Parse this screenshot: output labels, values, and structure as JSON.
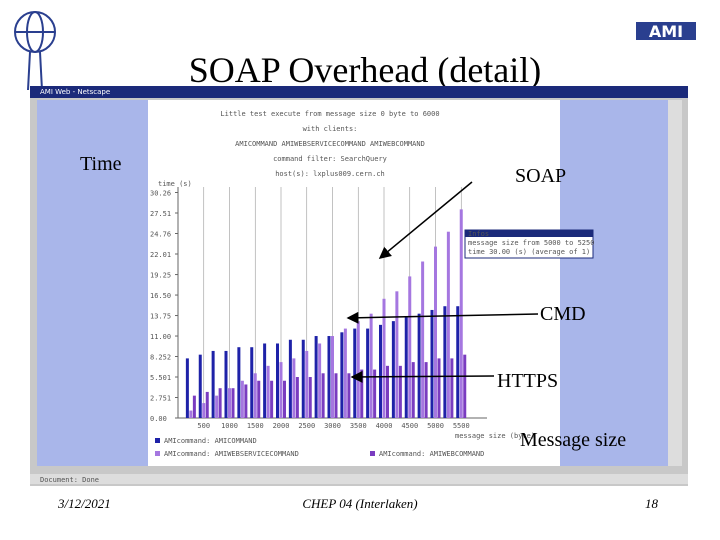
{
  "slide": {
    "title": "SOAP Overhead (detail)",
    "annotations": {
      "time": "Time",
      "soap": "SOAP",
      "cmd": "CMD",
      "https": "HTTPS",
      "size": "Message size"
    },
    "footer": {
      "date": "3/12/2021",
      "event": "CHEP 04 (Interlaken)",
      "page": "18"
    },
    "window": {
      "title": "AMI Web - Netscape",
      "status": "Document: Done"
    },
    "tooltip": [
      "Infos",
      "message size from 5000 to 5250",
      "time 30.00 (s) (average of 1)"
    ]
  },
  "chart_data": {
    "type": "bar",
    "title_lines": [
      "Little test execute from message size 0 byte to 6000",
      "with clients:",
      "AMICOMMAND AMIWEBSERVICECOMMAND AMIWEBCOMMAND",
      "command filter: SearchQuery",
      "host(s): lxplus009.cern.ch"
    ],
    "y_label": "time (s)",
    "x_label": "message size (byte)",
    "x": [
      250,
      500,
      750,
      1000,
      1250,
      1500,
      1750,
      2000,
      2250,
      2500,
      2750,
      3000,
      3250,
      3500,
      3750,
      4000,
      4250,
      4500,
      4750,
      5000,
      5250,
      5500
    ],
    "series": [
      {
        "name": "AMIcommand: AMICOMMAND",
        "color": "#1e22a8",
        "values": [
          8,
          8.5,
          9,
          9,
          9.5,
          9.5,
          10,
          10,
          10.5,
          10.5,
          11,
          11,
          11.5,
          12,
          12,
          12.5,
          13,
          13.5,
          14,
          14.5,
          15,
          15
        ]
      },
      {
        "name": "AMIcommand: AMIWEBSERVICECOMMAND",
        "color": "#a577e0",
        "values": [
          1,
          2,
          3,
          4,
          5,
          6,
          7,
          7.5,
          8,
          9,
          10,
          11,
          12,
          13,
          14,
          16,
          17,
          19,
          21,
          23,
          25,
          28
        ]
      },
      {
        "name": "AMIcommand: AMIWEBCOMMAND",
        "color": "#7a3cc0",
        "values": [
          3,
          3.5,
          4,
          4,
          4.5,
          5,
          5,
          5,
          5.5,
          5.5,
          6,
          6,
          6,
          6.5,
          6.5,
          7,
          7,
          7.5,
          7.5,
          8,
          8,
          8.5
        ]
      }
    ],
    "xlim": [
      0,
      6000
    ],
    "xticks": [
      500,
      1000,
      1500,
      2000,
      2500,
      3000,
      3500,
      4000,
      4500,
      5000,
      5500
    ],
    "ylim": [
      0,
      31
    ],
    "yticks": [
      {
        "value": 0,
        "label": "0.00"
      },
      2.751,
      5.501,
      8.252,
      {
        "value": 11,
        "label": "11.00"
      },
      13.75,
      {
        "value": 16.5,
        "label": "16.50"
      },
      19.25,
      22.01,
      24.76,
      27.51,
      30.26
    ]
  }
}
